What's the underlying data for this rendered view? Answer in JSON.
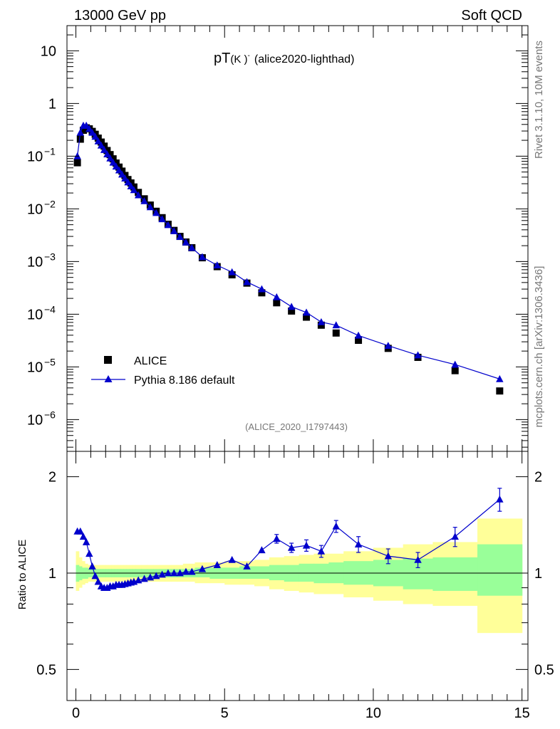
{
  "header": {
    "left": "13000 GeV pp",
    "right": "Soft QCD"
  },
  "side": {
    "rivet": "Rivet 3.1.10,  10M events",
    "mcplots": "mcplots.cern.ch [arXiv:1306.3436]"
  },
  "plot": {
    "title_main": "pT",
    "title_particle": "(K )",
    "title_particle_sup": "-",
    "title_tag": "(alice2020-lighthad)",
    "analysis_id": "(ALICE_2020_I1797443)",
    "ratio_ylabel": "Ratio to ALICE"
  },
  "legend": {
    "data_label": "ALICE",
    "mc_label": "Pythia 8.186 default"
  },
  "colors": {
    "mc": "#0000cc",
    "data": "#000000",
    "band_outer": "#ffff99",
    "band_inner": "#99ff99"
  },
  "chart_data": [
    {
      "type": "scatter",
      "title": "pT(K-) (alice2020-lighthad)",
      "xlabel": "",
      "ylabel": "",
      "xlim": [
        -0.3,
        15.2
      ],
      "ylim": [
        2.5e-07,
        30
      ],
      "yscale": "log",
      "x_ticks": [
        0,
        5,
        10,
        15
      ],
      "y_ticks": [
        "10^-6",
        "10^-5",
        "10^-4",
        "10^-3",
        "10^-2",
        "10^-1",
        "1",
        "10"
      ],
      "series": [
        {
          "name": "ALICE",
          "marker": "square",
          "x": [
            0.05,
            0.15,
            0.25,
            0.35,
            0.45,
            0.55,
            0.65,
            0.75,
            0.85,
            0.95,
            1.05,
            1.15,
            1.25,
            1.35,
            1.45,
            1.55,
            1.65,
            1.75,
            1.85,
            1.95,
            2.1,
            2.3,
            2.5,
            2.7,
            2.9,
            3.1,
            3.3,
            3.5,
            3.7,
            3.9,
            4.25,
            4.75,
            5.25,
            5.75,
            6.25,
            6.75,
            7.25,
            7.75,
            8.25,
            8.75,
            9.5,
            10.5,
            11.5,
            12.75,
            14.25
          ],
          "y": [
            0.075,
            0.21,
            0.31,
            0.345,
            0.33,
            0.295,
            0.26,
            0.22,
            0.185,
            0.155,
            0.128,
            0.107,
            0.089,
            0.074,
            0.062,
            0.052,
            0.043,
            0.036,
            0.031,
            0.026,
            0.0205,
            0.0155,
            0.0118,
            0.009,
            0.0068,
            0.0051,
            0.0039,
            0.003,
            0.00235,
            0.00183,
            0.00118,
            0.0008,
            0.00056,
            0.00039,
            0.000255,
            0.000165,
            0.000115,
            8.8e-05,
            6.2e-05,
            4.4e-05,
            3.2e-05,
            2.25e-05,
            1.52e-05,
            8.5e-06,
            3.5e-06
          ]
        },
        {
          "name": "Pythia 8.186 default",
          "marker": "triangle",
          "x": [
            0.05,
            0.15,
            0.25,
            0.35,
            0.45,
            0.55,
            0.65,
            0.75,
            0.85,
            0.95,
            1.05,
            1.15,
            1.25,
            1.35,
            1.45,
            1.55,
            1.65,
            1.75,
            1.85,
            1.95,
            2.1,
            2.3,
            2.5,
            2.7,
            2.9,
            3.1,
            3.3,
            3.5,
            3.7,
            3.9,
            4.25,
            4.75,
            5.25,
            5.75,
            6.25,
            6.75,
            7.25,
            7.75,
            8.25,
            8.75,
            9.5,
            10.5,
            11.5,
            12.75,
            14.25
          ],
          "y": [
            0.1,
            0.28,
            0.38,
            0.38,
            0.33,
            0.28,
            0.235,
            0.192,
            0.16,
            0.132,
            0.109,
            0.091,
            0.076,
            0.064,
            0.054,
            0.045,
            0.038,
            0.032,
            0.027,
            0.0228,
            0.0182,
            0.0141,
            0.0108,
            0.0084,
            0.0064,
            0.00495,
            0.0038,
            0.00295,
            0.00232,
            0.00182,
            0.00122,
            0.00085,
            0.00063,
            0.00041,
            0.0003,
            0.000211,
            0.000139,
            0.000108,
            7.1e-05,
            6.2e-05,
            3.95e-05,
            2.53e-05,
            1.67e-05,
            1.11e-05,
            5.9e-06
          ]
        }
      ]
    },
    {
      "type": "line",
      "title": "Ratio to ALICE",
      "xlabel": "",
      "ylabel": "Ratio to ALICE",
      "xlim": [
        -0.3,
        15.2
      ],
      "ylim": [
        0.4,
        2.4
      ],
      "yscale": "log",
      "x_ticks": [
        0,
        5,
        10,
        15
      ],
      "y_ticks": [
        0.5,
        1,
        2
      ],
      "bin_edges": [
        0,
        0.1,
        0.2,
        0.3,
        0.4,
        0.5,
        0.6,
        0.7,
        0.8,
        0.9,
        1.0,
        1.1,
        1.2,
        1.3,
        1.4,
        1.5,
        1.6,
        1.7,
        1.8,
        1.9,
        2.0,
        2.2,
        2.4,
        2.6,
        2.8,
        3.0,
        3.2,
        3.4,
        3.6,
        3.8,
        4.0,
        4.5,
        5.0,
        5.5,
        6.0,
        6.5,
        7.0,
        7.5,
        8.0,
        8.5,
        9.0,
        10.0,
        11.0,
        12.0,
        13.5,
        15.0
      ],
      "band_outer_low": [
        0.88,
        0.9,
        0.92,
        0.93,
        0.94,
        0.94,
        0.94,
        0.94,
        0.94,
        0.94,
        0.94,
        0.94,
        0.94,
        0.94,
        0.94,
        0.94,
        0.94,
        0.94,
        0.94,
        0.94,
        0.94,
        0.94,
        0.94,
        0.94,
        0.94,
        0.94,
        0.94,
        0.94,
        0.94,
        0.94,
        0.93,
        0.93,
        0.92,
        0.92,
        0.91,
        0.89,
        0.88,
        0.87,
        0.86,
        0.86,
        0.84,
        0.82,
        0.8,
        0.79,
        0.65
      ],
      "band_outer_high": [
        1.17,
        1.12,
        1.09,
        1.07,
        1.06,
        1.06,
        1.06,
        1.06,
        1.06,
        1.06,
        1.06,
        1.06,
        1.06,
        1.06,
        1.06,
        1.06,
        1.06,
        1.06,
        1.06,
        1.06,
        1.06,
        1.06,
        1.06,
        1.06,
        1.06,
        1.06,
        1.06,
        1.06,
        1.07,
        1.07,
        1.08,
        1.08,
        1.09,
        1.09,
        1.1,
        1.12,
        1.13,
        1.14,
        1.15,
        1.15,
        1.17,
        1.2,
        1.23,
        1.25,
        1.48
      ],
      "band_inner_low": [
        0.94,
        0.95,
        0.96,
        0.96,
        0.97,
        0.97,
        0.97,
        0.97,
        0.97,
        0.97,
        0.97,
        0.97,
        0.97,
        0.97,
        0.97,
        0.97,
        0.97,
        0.97,
        0.97,
        0.97,
        0.97,
        0.97,
        0.97,
        0.97,
        0.97,
        0.97,
        0.97,
        0.97,
        0.97,
        0.97,
        0.97,
        0.96,
        0.96,
        0.96,
        0.96,
        0.95,
        0.94,
        0.94,
        0.93,
        0.93,
        0.92,
        0.91,
        0.89,
        0.88,
        0.85
      ],
      "band_inner_high": [
        1.06,
        1.05,
        1.04,
        1.04,
        1.03,
        1.03,
        1.03,
        1.03,
        1.03,
        1.03,
        1.03,
        1.03,
        1.03,
        1.03,
        1.03,
        1.03,
        1.03,
        1.03,
        1.03,
        1.03,
        1.03,
        1.03,
        1.03,
        1.03,
        1.03,
        1.03,
        1.03,
        1.03,
        1.03,
        1.03,
        1.04,
        1.04,
        1.04,
        1.05,
        1.05,
        1.06,
        1.06,
        1.07,
        1.07,
        1.08,
        1.09,
        1.1,
        1.11,
        1.12,
        1.23
      ],
      "series": [
        {
          "name": "Pythia 8.186 default / ALICE",
          "x": [
            0.05,
            0.15,
            0.25,
            0.35,
            0.45,
            0.55,
            0.65,
            0.75,
            0.85,
            0.95,
            1.05,
            1.15,
            1.25,
            1.35,
            1.45,
            1.55,
            1.65,
            1.75,
            1.85,
            1.95,
            2.1,
            2.3,
            2.5,
            2.7,
            2.9,
            3.1,
            3.3,
            3.5,
            3.7,
            3.9,
            4.25,
            4.75,
            5.25,
            5.75,
            6.25,
            6.75,
            7.25,
            7.75,
            8.25,
            8.75,
            9.5,
            10.5,
            11.5,
            12.75,
            14.25
          ],
          "y": [
            1.35,
            1.35,
            1.3,
            1.25,
            1.15,
            1.05,
            0.98,
            0.94,
            0.91,
            0.9,
            0.9,
            0.91,
            0.91,
            0.92,
            0.92,
            0.92,
            0.925,
            0.93,
            0.935,
            0.94,
            0.95,
            0.96,
            0.97,
            0.98,
            0.99,
            1.0,
            1.0,
            1.0,
            1.01,
            1.01,
            1.03,
            1.06,
            1.1,
            1.05,
            1.18,
            1.28,
            1.2,
            1.22,
            1.17,
            1.4,
            1.23,
            1.13,
            1.1,
            1.3,
            1.7
          ],
          "yerr": [
            0,
            0,
            0,
            0,
            0,
            0,
            0,
            0,
            0,
            0,
            0,
            0,
            0,
            0,
            0,
            0,
            0,
            0,
            0,
            0,
            0,
            0,
            0,
            0,
            0,
            0,
            0,
            0,
            0,
            0,
            0,
            0,
            0,
            0,
            0,
            0.04,
            0.04,
            0.05,
            0.05,
            0.06,
            0.07,
            0.06,
            0.06,
            0.09,
            0.14
          ]
        }
      ]
    }
  ]
}
